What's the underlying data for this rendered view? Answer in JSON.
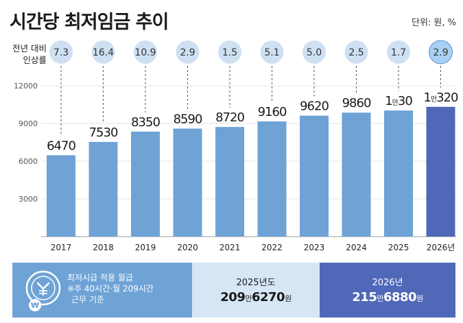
{
  "title": "시간당 최저임금 추이",
  "unit": "단위: 원, %",
  "rate_label_line1": "전년 대비",
  "rate_label_line2": "인상률",
  "chart_data": {
    "type": "bar",
    "categories": [
      "2017",
      "2018",
      "2019",
      "2020",
      "2021",
      "2022",
      "2023",
      "2024",
      "2025",
      "2026년"
    ],
    "values": [
      6470,
      7530,
      8350,
      8590,
      8720,
      9160,
      9620,
      9860,
      10030,
      10320
    ],
    "value_labels": [
      {
        "prefix": "",
        "main": "6470"
      },
      {
        "prefix": "",
        "main": "7530"
      },
      {
        "prefix": "",
        "main": "8350"
      },
      {
        "prefix": "",
        "main": "8590"
      },
      {
        "prefix": "",
        "main": "8720"
      },
      {
        "prefix": "",
        "main": "9160"
      },
      {
        "prefix": "",
        "main": "9620"
      },
      {
        "prefix": "",
        "main": "9860"
      },
      {
        "prefix": "1만",
        "main": "30"
      },
      {
        "prefix": "1만",
        "main": "320"
      }
    ],
    "growth_rates": [
      "7.3",
      "16.4",
      "10.9",
      "2.9",
      "1.5",
      "5.1",
      "5.0",
      "2.5",
      "1.7",
      "2.9"
    ],
    "yticks": [
      "3000",
      "6000",
      "9000",
      "12000"
    ],
    "ylim": [
      0,
      12000
    ],
    "colors": {
      "bar": "#6fa3d6",
      "highlight_bar": "#4f68b8",
      "bubble": "#cfe0f3",
      "highlight_bubble": "#a9d0f2"
    }
  },
  "footer": {
    "left_title": "최저시급 적용 월급",
    "left_note1": "※주 40시간·월 209시간",
    "left_note2": "근무 기준",
    "mid_year": "2025년도",
    "mid_value_a": "209",
    "mid_value_unit_a": "만",
    "mid_value_b": "6270",
    "mid_value_unit_b": "원",
    "right_year": "2026년",
    "right_value_a": "215",
    "right_value_unit_a": "만",
    "right_value_b": "6880",
    "right_value_unit_b": "원",
    "icon": "clock-won-icon"
  }
}
